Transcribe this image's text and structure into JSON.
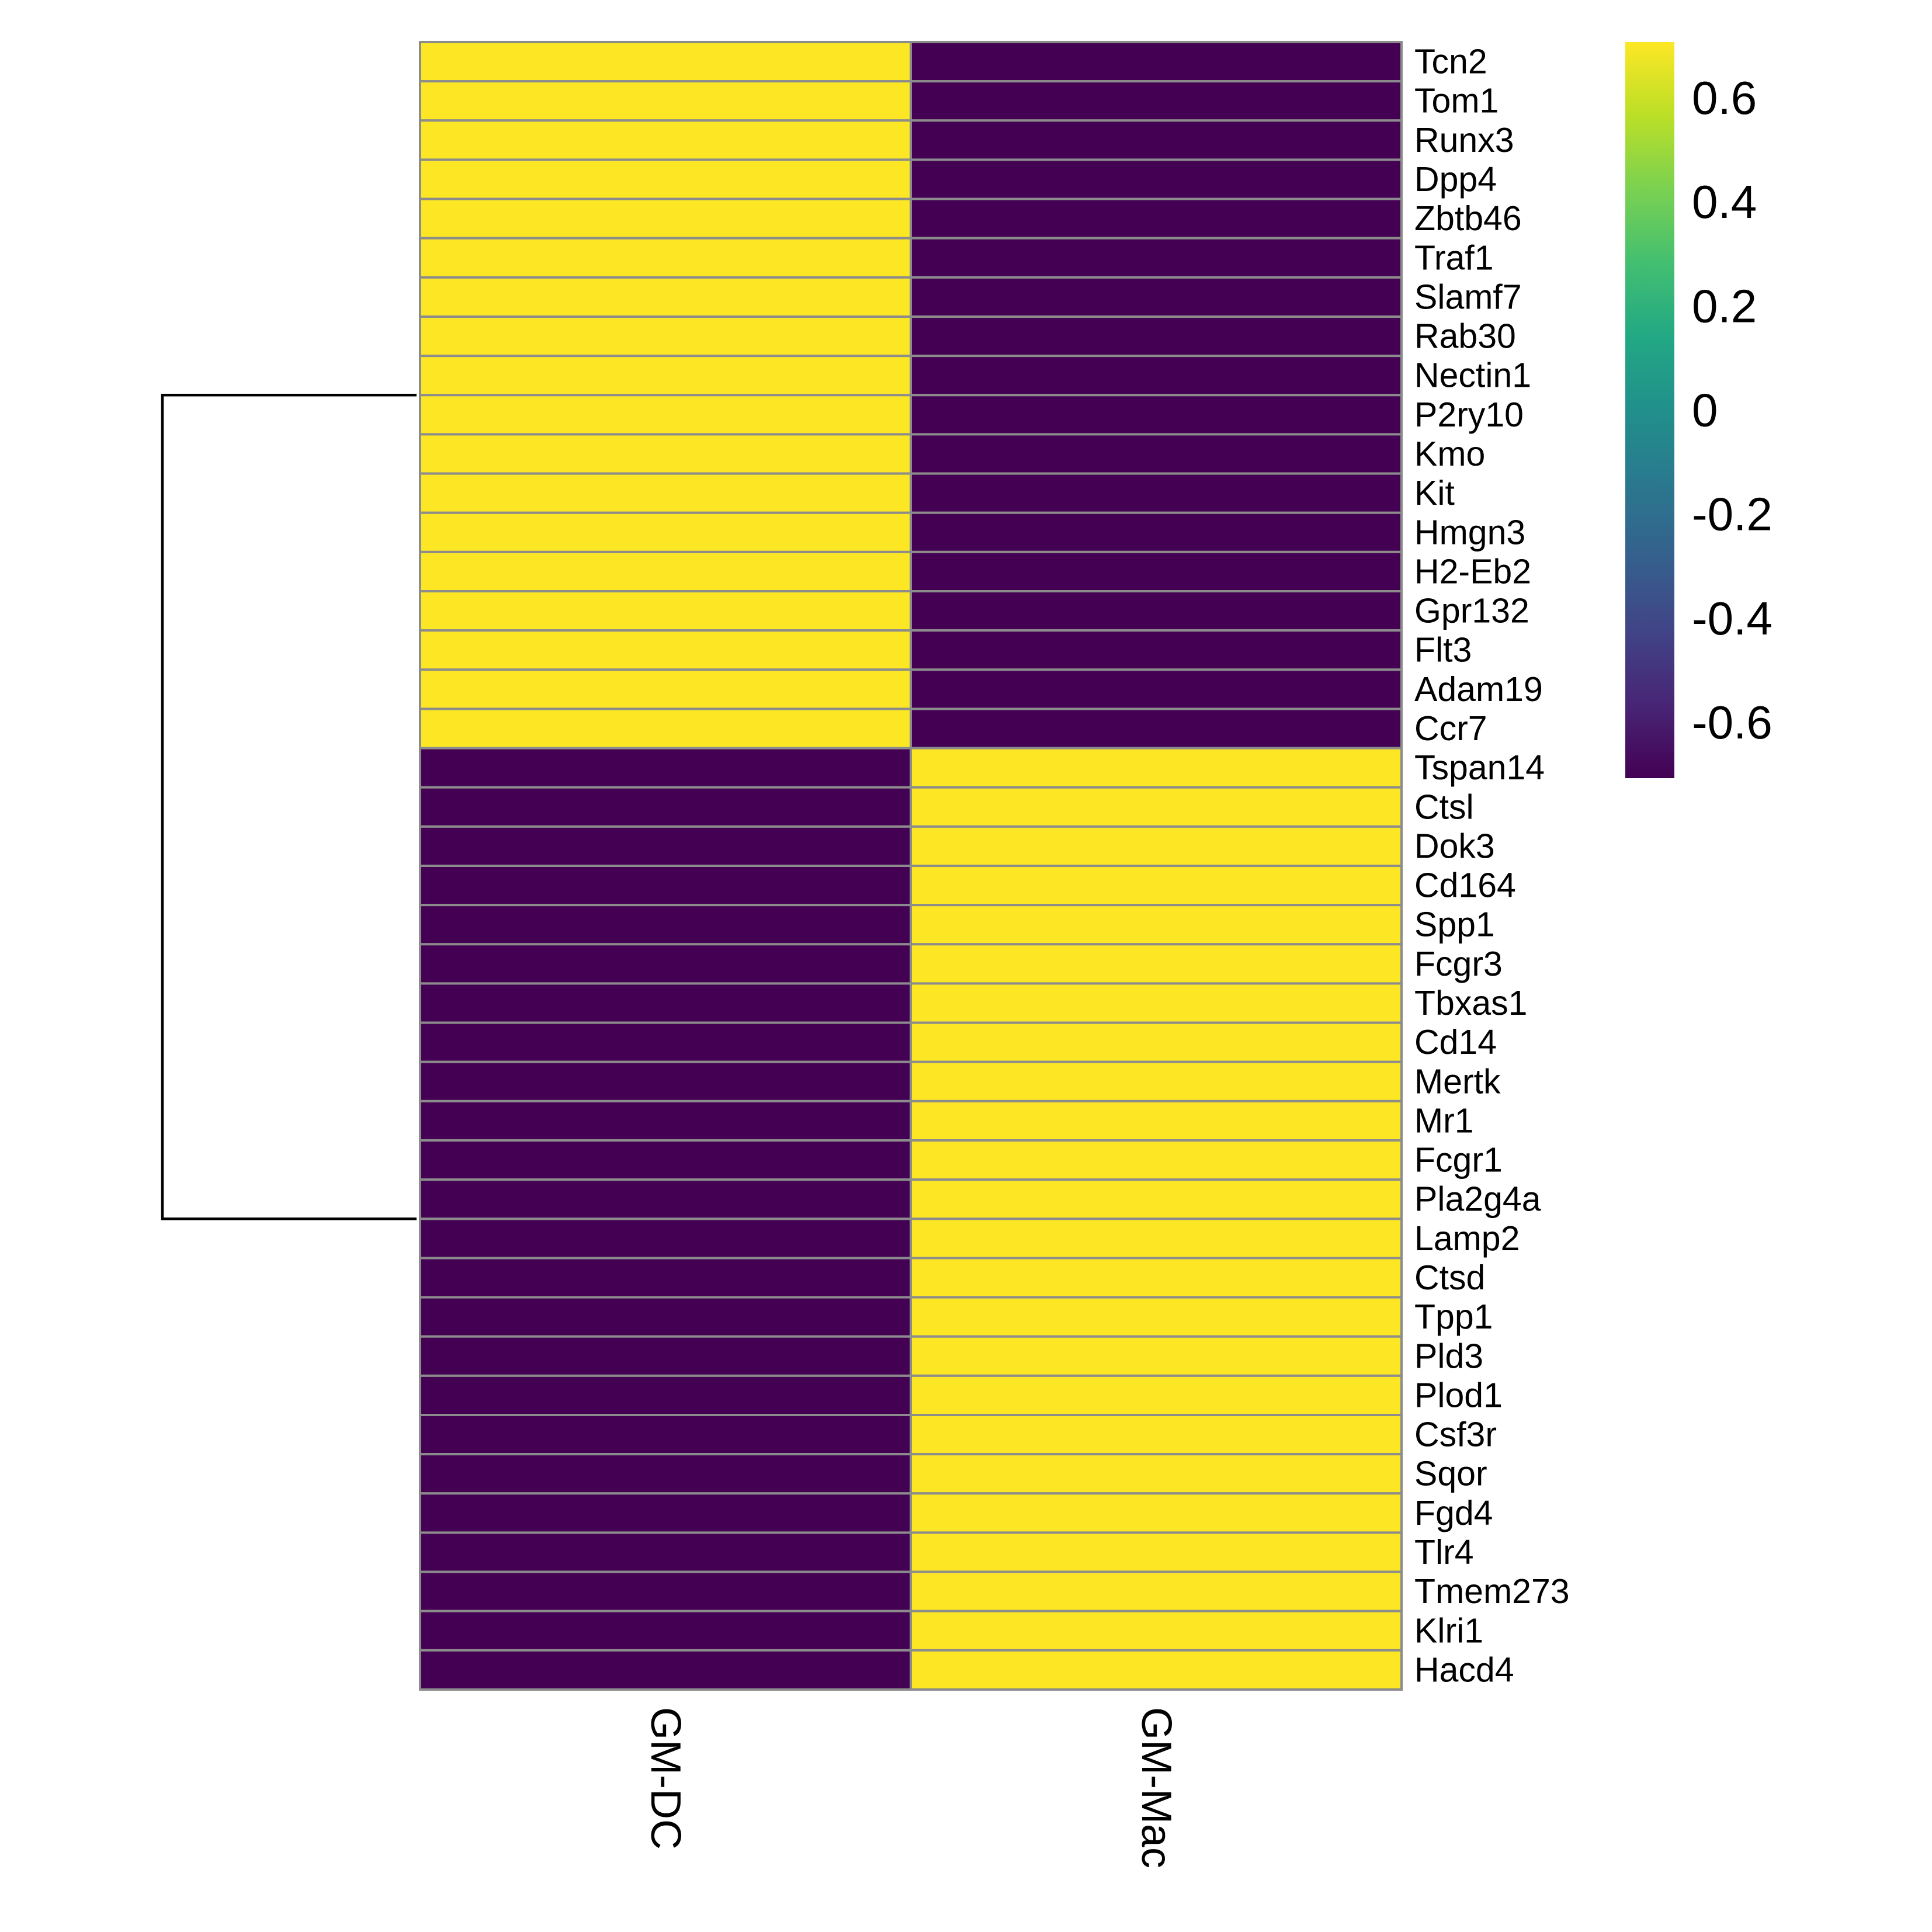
{
  "chart_data": {
    "type": "heatmap",
    "title": "",
    "xlabel": "",
    "ylabel": "",
    "columns": [
      "GM-DC",
      "GM-Mac"
    ],
    "rows": [
      "Tcn2",
      "Tom1",
      "Runx3",
      "Dpp4",
      "Zbtb46",
      "Traf1",
      "Slamf7",
      "Rab30",
      "Nectin1",
      "P2ry10",
      "Kmo",
      "Kit",
      "Hmgn3",
      "H2-Eb2",
      "Gpr132",
      "Flt3",
      "Adam19",
      "Ccr7",
      "Tspan14",
      "Ctsl",
      "Dok3",
      "Cd164",
      "Spp1",
      "Fcgr3",
      "Tbxas1",
      "Cd14",
      "Mertk",
      "Mr1",
      "Fcgr1",
      "Pla2g4a",
      "Lamp2",
      "Ctsd",
      "Tpp1",
      "Pld3",
      "Plod1",
      "Csf3r",
      "Sqor",
      "Fgd4",
      "Tlr4",
      "Tmem273",
      "Klri1",
      "Hacd4"
    ],
    "values": [
      [
        0.707,
        -0.707
      ],
      [
        0.707,
        -0.707
      ],
      [
        0.707,
        -0.707
      ],
      [
        0.707,
        -0.707
      ],
      [
        0.707,
        -0.707
      ],
      [
        0.707,
        -0.707
      ],
      [
        0.707,
        -0.707
      ],
      [
        0.707,
        -0.707
      ],
      [
        0.707,
        -0.707
      ],
      [
        0.707,
        -0.707
      ],
      [
        0.707,
        -0.707
      ],
      [
        0.707,
        -0.707
      ],
      [
        0.707,
        -0.707
      ],
      [
        0.707,
        -0.707
      ],
      [
        0.707,
        -0.707
      ],
      [
        0.707,
        -0.707
      ],
      [
        0.707,
        -0.707
      ],
      [
        0.707,
        -0.707
      ],
      [
        -0.707,
        0.707
      ],
      [
        -0.707,
        0.707
      ],
      [
        -0.707,
        0.707
      ],
      [
        -0.707,
        0.707
      ],
      [
        -0.707,
        0.707
      ],
      [
        -0.707,
        0.707
      ],
      [
        -0.707,
        0.707
      ],
      [
        -0.707,
        0.707
      ],
      [
        -0.707,
        0.707
      ],
      [
        -0.707,
        0.707
      ],
      [
        -0.707,
        0.707
      ],
      [
        -0.707,
        0.707
      ],
      [
        -0.707,
        0.707
      ],
      [
        -0.707,
        0.707
      ],
      [
        -0.707,
        0.707
      ],
      [
        -0.707,
        0.707
      ],
      [
        -0.707,
        0.707
      ],
      [
        -0.707,
        0.707
      ],
      [
        -0.707,
        0.707
      ],
      [
        -0.707,
        0.707
      ],
      [
        -0.707,
        0.707
      ],
      [
        -0.707,
        0.707
      ],
      [
        -0.707,
        0.707
      ],
      [
        -0.707,
        0.707
      ]
    ],
    "colorscale": "viridis",
    "color_low": "#440154",
    "color_high": "#FDE725",
    "color_range": [
      -0.707,
      0.707
    ],
    "colorbar_ticks": [
      0.6,
      0.4,
      0.2,
      0,
      -0.2,
      -0.4,
      -0.6
    ],
    "colorbar_tick_labels": [
      "0.6",
      "0.4",
      "0.2",
      "0",
      "-0.2",
      "-0.4",
      "-0.6"
    ],
    "row_dendrogram": {
      "clusters": [
        {
          "rows": [
            "Tcn2",
            "Tom1",
            "Runx3",
            "Dpp4",
            "Zbtb46",
            "Traf1",
            "Slamf7",
            "Rab30",
            "Nectin1",
            "P2ry10",
            "Kmo",
            "Kit",
            "Hmgn3",
            "H2-Eb2",
            "Gpr132",
            "Flt3",
            "Adam19",
            "Ccr7"
          ]
        },
        {
          "rows": [
            "Tspan14",
            "Ctsl",
            "Dok3",
            "Cd164",
            "Spp1",
            "Fcgr3",
            "Tbxas1",
            "Cd14",
            "Mertk",
            "Mr1",
            "Fcgr1",
            "Pla2g4a",
            "Lamp2",
            "Ctsd",
            "Tpp1",
            "Pld3",
            "Plod1",
            "Csf3r",
            "Sqor",
            "Fgd4",
            "Tlr4",
            "Tmem273",
            "Klri1",
            "Hacd4"
          ]
        }
      ]
    },
    "grid": false,
    "legend": "right"
  }
}
